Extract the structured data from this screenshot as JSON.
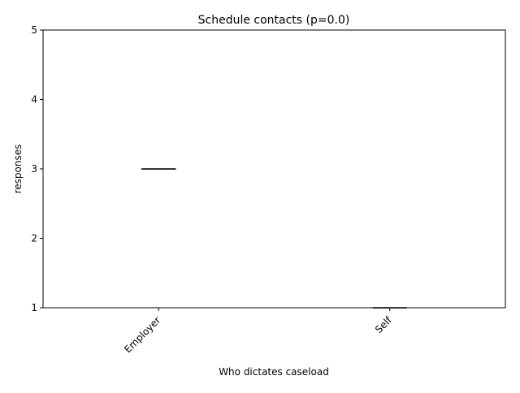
{
  "chart_data": {
    "type": "box",
    "title": "Schedule contacts (p=0.0)",
    "xlabel": "Who dictates caseload",
    "ylabel": "responses",
    "categories": [
      "Employer",
      "Self"
    ],
    "ylim": [
      1,
      5
    ],
    "yticks": [
      1,
      2,
      3,
      4,
      5
    ],
    "boxes": [
      {
        "category": "Employer",
        "min": 3,
        "q1": 3,
        "median": 3,
        "q3": 3,
        "max": 3
      },
      {
        "category": "Self",
        "min": 1,
        "q1": 1,
        "median": 1,
        "q3": 1,
        "max": 1
      }
    ],
    "grid": false,
    "colors": {
      "median": "#000000",
      "box": "#808080",
      "axis": "#000000"
    }
  }
}
